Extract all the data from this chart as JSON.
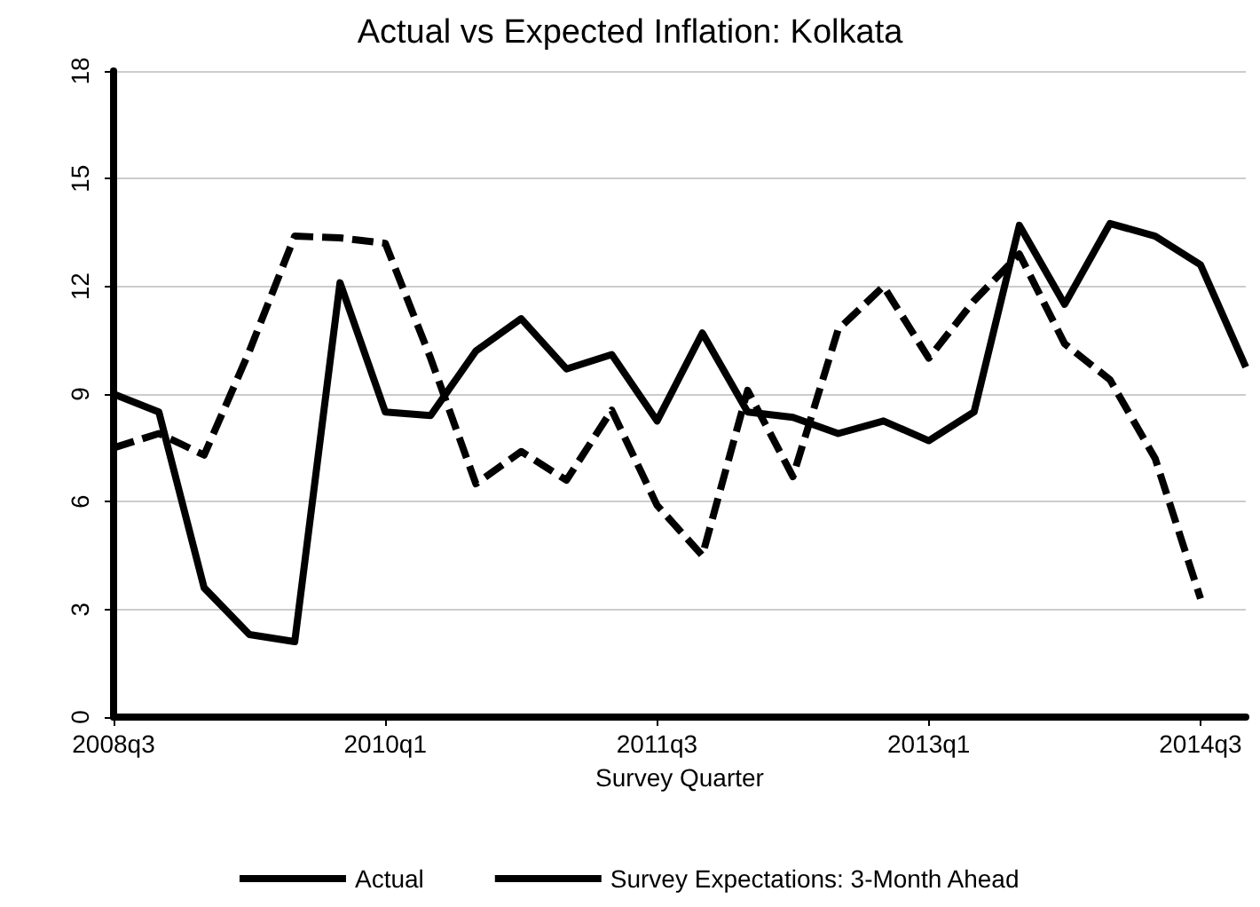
{
  "chart_data": {
    "type": "line",
    "title": "Actual vs Expected Inflation: Kolkata",
    "xlabel": "Survey Quarter",
    "categories": [
      "2008q3",
      null,
      null,
      null,
      null,
      null,
      "2010q1",
      null,
      null,
      null,
      null,
      null,
      "2011q3",
      null,
      null,
      null,
      null,
      null,
      "2013q1",
      null,
      null,
      null,
      null,
      null,
      "2014q3",
      null
    ],
    "series": [
      {
        "name": "Actual",
        "color": "#000000",
        "line_style": "dashed",
        "values": [
          7.5,
          7.9,
          7.3,
          10.2,
          13.4,
          13.35,
          13.2,
          10.0,
          6.5,
          7.4,
          6.6,
          8.55,
          5.9,
          4.5,
          9.1,
          6.7,
          10.8,
          12.0,
          10.0,
          11.6,
          12.9,
          10.4,
          9.4,
          7.2,
          3.3,
          null
        ]
      },
      {
        "name": "Survey Expectations: 3-Month Ahead",
        "color": "#000000",
        "line_style": "solid",
        "values": [
          9.0,
          8.5,
          3.6,
          2.3,
          2.1,
          12.1,
          8.5,
          8.4,
          10.2,
          11.1,
          9.7,
          10.1,
          8.25,
          10.7,
          8.5,
          8.35,
          7.9,
          8.25,
          7.7,
          8.5,
          13.7,
          11.5,
          13.75,
          13.4,
          12.6,
          9.75
        ]
      }
    ],
    "ylim": [
      0,
      18
    ],
    "yticks": [
      0,
      3,
      6,
      9,
      12,
      15,
      18
    ],
    "grid": "y",
    "legend": "bottom",
    "marker": "none"
  }
}
